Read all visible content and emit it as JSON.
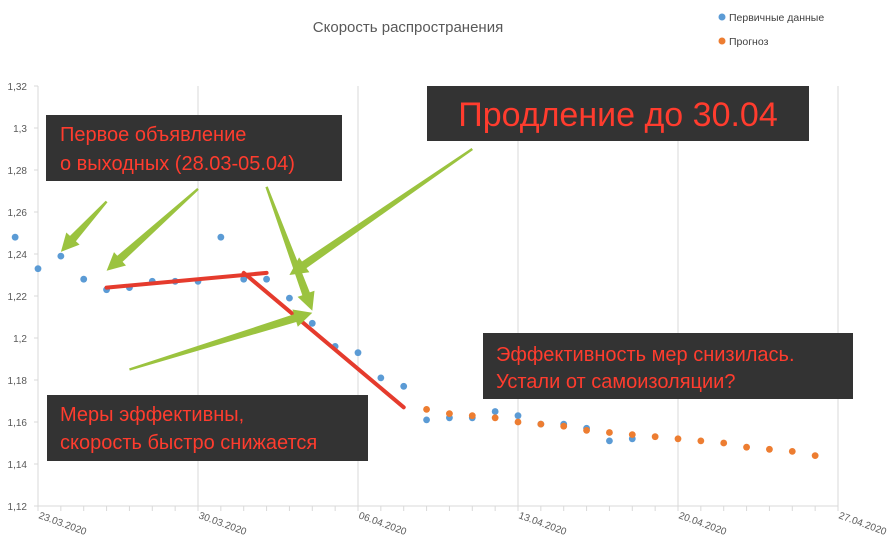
{
  "chart_data": {
    "type": "scatter",
    "title": "Скорость распространения",
    "xlabel": "",
    "ylabel": "",
    "x_range": [
      "23.03.2020",
      "27.04.2020"
    ],
    "xlim_day_offsets": [
      0,
      35
    ],
    "ylim": [
      1.12,
      1.32
    ],
    "y_ticks": [
      "1,12",
      "1,14",
      "1,16",
      "1,18",
      "1,2",
      "1,22",
      "1,24",
      "1,26",
      "1,28",
      "1,3",
      "1,32"
    ],
    "x_ticks": [
      "23.03.2020",
      "30.03.2020",
      "06.04.2020",
      "13.04.2020",
      "20.04.2020",
      "27.04.2020"
    ],
    "grid": {
      "vertical": true,
      "horizontal": false
    },
    "legend_position": "top-right",
    "series": [
      {
        "name": "Первичные данные",
        "color": "#5b9bd5",
        "x": [
          "22.03.2020",
          "23.03.2020",
          "24.03.2020",
          "25.03.2020",
          "26.03.2020",
          "27.03.2020",
          "28.03.2020",
          "29.03.2020",
          "30.03.2020",
          "31.03.2020",
          "01.04.2020",
          "02.04.2020",
          "03.04.2020",
          "04.04.2020",
          "05.04.2020",
          "06.04.2020",
          "07.04.2020",
          "08.04.2020",
          "09.04.2020",
          "10.04.2020",
          "11.04.2020",
          "12.04.2020",
          "13.04.2020",
          "14.04.2020",
          "15.04.2020",
          "16.04.2020",
          "17.04.2020",
          "18.04.2020"
        ],
        "values": [
          1.248,
          1.233,
          1.239,
          1.228,
          1.223,
          1.224,
          1.227,
          1.227,
          1.227,
          1.248,
          1.228,
          1.228,
          1.219,
          1.207,
          1.196,
          1.193,
          1.181,
          1.177,
          1.161,
          1.162,
          1.162,
          1.165,
          1.163,
          1.159,
          1.159,
          1.157,
          1.151,
          1.152
        ]
      },
      {
        "name": "Прогноз",
        "color": "#ed7d31",
        "x": [
          "09.04.2020",
          "10.04.2020",
          "11.04.2020",
          "12.04.2020",
          "13.04.2020",
          "14.04.2020",
          "15.04.2020",
          "16.04.2020",
          "17.04.2020",
          "18.04.2020",
          "19.04.2020",
          "20.04.2020",
          "21.04.2020",
          "22.04.2020",
          "23.04.2020",
          "24.04.2020",
          "25.04.2020",
          "26.04.2020"
        ],
        "values": [
          1.166,
          1.164,
          1.163,
          1.162,
          1.16,
          1.159,
          1.158,
          1.156,
          1.155,
          1.154,
          1.153,
          1.152,
          1.151,
          1.15,
          1.148,
          1.147,
          1.146,
          1.144
        ]
      }
    ],
    "trend_lines": [
      {
        "color": "#e53b2d",
        "from": {
          "x": "26.03.2020",
          "y": 1.224
        },
        "to": {
          "x": "02.04.2020",
          "y": 1.231
        }
      },
      {
        "color": "#e53b2d",
        "from": {
          "x": "01.04.2020",
          "y": 1.231
        },
        "to": {
          "x": "08.04.2020",
          "y": 1.167
        }
      }
    ],
    "arrow_color": "#9bc33f",
    "arrows": [
      {
        "from": {
          "x": "26.03.2020",
          "y": 1.265
        },
        "to": {
          "x": "24.03.2020",
          "y": 1.241
        }
      },
      {
        "from": {
          "x": "30.03.2020",
          "y": 1.271
        },
        "to": {
          "x": "26.03.2020",
          "y": 1.232
        }
      },
      {
        "from": {
          "x": "11.04.2020",
          "y": 1.29
        },
        "to": {
          "x": "03.04.2020",
          "y": 1.23
        }
      },
      {
        "from": {
          "x": "27.03.2020",
          "y": 1.185
        },
        "to": {
          "x": "04.04.2020",
          "y": 1.212
        }
      },
      {
        "from": {
          "x": "02.04.2020",
          "y": 1.272
        },
        "to": {
          "x": "04.04.2020",
          "y": 1.213
        }
      }
    ],
    "annotations": [
      {
        "text": [
          "Первое объявление",
          "о выходных (28.03-05.04)"
        ]
      },
      {
        "text": [
          "Продление до 30.04"
        ]
      },
      {
        "text": [
          "Меры эффективны,",
          "скорость быстро снижается"
        ]
      },
      {
        "text": [
          "Эффективность мер снизилась.",
          "Устали от самоизоляции?"
        ]
      }
    ],
    "colors": {
      "callout_bg": "#333333",
      "callout_text": "#ff3c2e",
      "grid": "#d9d9d9",
      "axis_text": "#595959"
    }
  }
}
